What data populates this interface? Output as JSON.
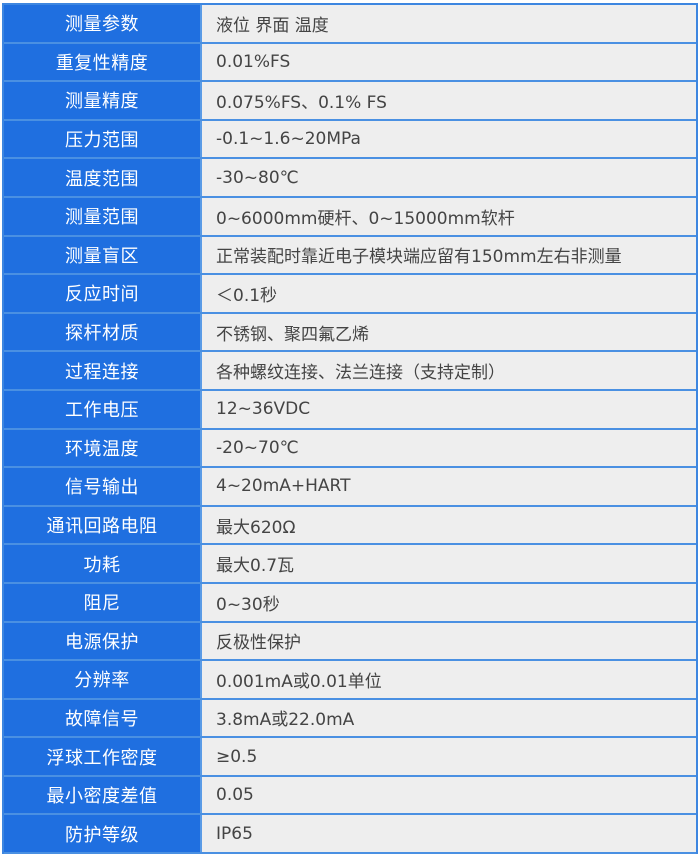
{
  "colors": {
    "label_bg": "#1f6fe0",
    "value_bg": "#eeeeee",
    "border": "#4a90e2"
  },
  "rows": [
    {
      "label": "测量参数",
      "value": "液位  界面  温度"
    },
    {
      "label": "重复性精度",
      "value": "0.01%FS"
    },
    {
      "label": "测量精度",
      "value": "0.075%FS、0.1% FS"
    },
    {
      "label": "压力范围",
      "value": "-0.1~1.6~20MPa"
    },
    {
      "label": "温度范围",
      "value": "-30~80℃"
    },
    {
      "label": "测量范围",
      "value": "0~6000mm硬杆、0~15000mm软杆"
    },
    {
      "label": "测量盲区",
      "value": "正常装配时靠近电子模块端应留有150mm左右非测量"
    },
    {
      "label": "反应时间",
      "value": "＜0.1秒"
    },
    {
      "label": "探杆材质",
      "value": "不锈钢、聚四氟乙烯"
    },
    {
      "label": "过程连接",
      "value": "各种螺纹连接、法兰连接（支持定制）"
    },
    {
      "label": "工作电压",
      "value": "12~36VDC"
    },
    {
      "label": "环境温度",
      "value": "-20~70℃"
    },
    {
      "label": "信号输出",
      "value": "4~20mA+HART"
    },
    {
      "label": "通讯回路电阻",
      "value": "最大620Ω"
    },
    {
      "label": "功耗",
      "value": "最大0.7瓦"
    },
    {
      "label": "阻尼",
      "value": "0~30秒"
    },
    {
      "label": "电源保护",
      "value": "反极性保护"
    },
    {
      "label": "分辨率",
      "value": "0.001mA或0.01单位"
    },
    {
      "label": "故障信号",
      "value": "3.8mA或22.0mA"
    },
    {
      "label": "浮球工作密度",
      "value": "≥0.5"
    },
    {
      "label": "最小密度差值",
      "value": "0.05"
    },
    {
      "label": "防护等级",
      "value": "IP65"
    }
  ]
}
